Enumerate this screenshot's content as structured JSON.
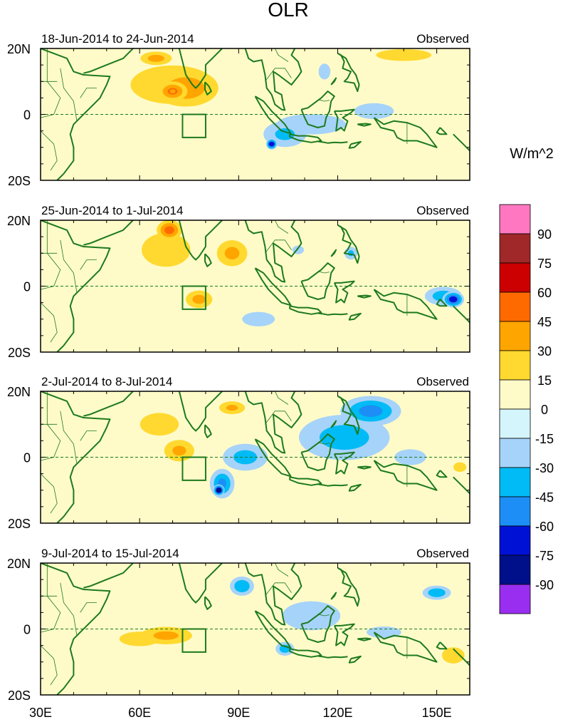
{
  "chart_data": {
    "type": "heatmap",
    "title": "OLR",
    "units": "W/m^2",
    "x_ticks": [
      "30E",
      "60E",
      "90E",
      "120E",
      "150E"
    ],
    "x_tick_values": [
      30,
      60,
      90,
      120,
      150
    ],
    "x_range": [
      30,
      160
    ],
    "y_ticks": [
      "20N",
      "0",
      "20S"
    ],
    "y_tick_values": [
      20,
      0,
      -20
    ],
    "y_range": [
      -20,
      20
    ],
    "equator_line": "dashed",
    "box_region": {
      "lon": [
        73,
        80
      ],
      "lat": [
        -7,
        0
      ]
    },
    "colorbar": {
      "labels": [
        "90",
        "75",
        "60",
        "45",
        "30",
        "15",
        "0",
        "-15",
        "-30",
        "-45",
        "-60",
        "-75",
        "-90"
      ],
      "levels": [
        90,
        75,
        60,
        45,
        30,
        15,
        0,
        -15,
        -30,
        -45,
        -60,
        -75,
        -90
      ],
      "colors": [
        "#ff77c0",
        "#a02828",
        "#cc0000",
        "#ff6a00",
        "#ffa500",
        "#ffd92f",
        "#fffbc9",
        "#d4f5fb",
        "#a6d3f9",
        "#00bbf5",
        "#1c8ef5",
        "#0011d6",
        "#00108a",
        "#9a2ef0"
      ]
    },
    "panels": [
      {
        "period": "18-Jun-2014 to 24-Jun-2014",
        "label": "Observed",
        "anomalies": [
          {
            "lon": 70,
            "lat": 7,
            "value": 45,
            "rx": 6,
            "ry": 4
          },
          {
            "lon": 74,
            "lat": 8,
            "value": 38,
            "rx": 14,
            "ry": 8
          },
          {
            "lon": 70,
            "lat": 9,
            "value": 24,
            "rx": 24,
            "ry": 11
          },
          {
            "lon": 65,
            "lat": 17,
            "value": 35,
            "rx": 7,
            "ry": 3
          },
          {
            "lon": 140,
            "lat": 18,
            "value": 28,
            "rx": 14,
            "ry": 3
          },
          {
            "lon": 100,
            "lat": -9,
            "value": -70,
            "rx": 2,
            "ry": 2
          },
          {
            "lon": 104,
            "lat": -6,
            "value": -32,
            "rx": 10,
            "ry": 6
          },
          {
            "lon": 112,
            "lat": -3,
            "value": -20,
            "rx": 24,
            "ry": 7
          },
          {
            "lon": 131,
            "lat": 1,
            "value": -28,
            "rx": 10,
            "ry": 4
          },
          {
            "lon": 116,
            "lat": 13,
            "value": -28,
            "rx": 3,
            "ry": 4
          }
        ]
      },
      {
        "period": "25-Jun-2014 to 1-Jul-2014",
        "label": "Observed",
        "anomalies": [
          {
            "lon": 69,
            "lat": 17,
            "value": 48,
            "rx": 5,
            "ry": 4
          },
          {
            "lon": 68,
            "lat": 11,
            "value": 26,
            "rx": 13,
            "ry": 9
          },
          {
            "lon": 88,
            "lat": 10,
            "value": 33,
            "rx": 7,
            "ry": 6
          },
          {
            "lon": 78,
            "lat": -4,
            "value": 34,
            "rx": 6,
            "ry": 4
          },
          {
            "lon": 155,
            "lat": -4,
            "value": -65,
            "rx": 4,
            "ry": 3
          },
          {
            "lon": 152,
            "lat": -3,
            "value": -38,
            "rx": 8,
            "ry": 4
          },
          {
            "lon": 124,
            "lat": 10,
            "value": -32,
            "rx": 3,
            "ry": 3
          },
          {
            "lon": 96,
            "lat": -10,
            "value": -25,
            "rx": 9,
            "ry": 4
          },
          {
            "lon": 108,
            "lat": 11,
            "value": -20,
            "rx": 4,
            "ry": 3
          }
        ]
      },
      {
        "period": "2-Jul-2014 to 8-Jul-2014",
        "label": "Observed",
        "anomalies": [
          {
            "lon": 84,
            "lat": -10,
            "value": -80,
            "rx": 2,
            "ry": 2
          },
          {
            "lon": 85,
            "lat": -8,
            "value": -45,
            "rx": 5,
            "ry": 6
          },
          {
            "lon": 92,
            "lat": 0,
            "value": -35,
            "rx": 10,
            "ry": 6
          },
          {
            "lon": 130,
            "lat": 14,
            "value": -48,
            "rx": 12,
            "ry": 6
          },
          {
            "lon": 122,
            "lat": 6,
            "value": -36,
            "rx": 20,
            "ry": 10
          },
          {
            "lon": 142,
            "lat": 0,
            "value": -28,
            "rx": 8,
            "ry": 4
          },
          {
            "lon": 88,
            "lat": 15,
            "value": 32,
            "rx": 6,
            "ry": 3
          },
          {
            "lon": 72,
            "lat": 2,
            "value": 32,
            "rx": 7,
            "ry": 5
          },
          {
            "lon": 66,
            "lat": 10,
            "value": 22,
            "rx": 12,
            "ry": 7
          },
          {
            "lon": 157,
            "lat": -3,
            "value": 22,
            "rx": 4,
            "ry": 3
          }
        ]
      },
      {
        "period": "9-Jul-2014 to 15-Jul-2014",
        "label": "Observed",
        "anomalies": [
          {
            "lon": 68,
            "lat": -2,
            "value": 33,
            "rx": 12,
            "ry": 4
          },
          {
            "lon": 60,
            "lat": -3,
            "value": 20,
            "rx": 14,
            "ry": 5
          },
          {
            "lon": 155,
            "lat": -8,
            "value": 22,
            "rx": 7,
            "ry": 5
          },
          {
            "lon": 91,
            "lat": 13,
            "value": -42,
            "rx": 5,
            "ry": 4
          },
          {
            "lon": 104,
            "lat": -6,
            "value": -38,
            "rx": 4,
            "ry": 3
          },
          {
            "lon": 112,
            "lat": 4,
            "value": -25,
            "rx": 16,
            "ry": 8
          },
          {
            "lon": 150,
            "lat": 11,
            "value": -40,
            "rx": 6,
            "ry": 3
          },
          {
            "lon": 134,
            "lat": -1,
            "value": -20,
            "rx": 12,
            "ry": 4
          }
        ]
      }
    ]
  }
}
